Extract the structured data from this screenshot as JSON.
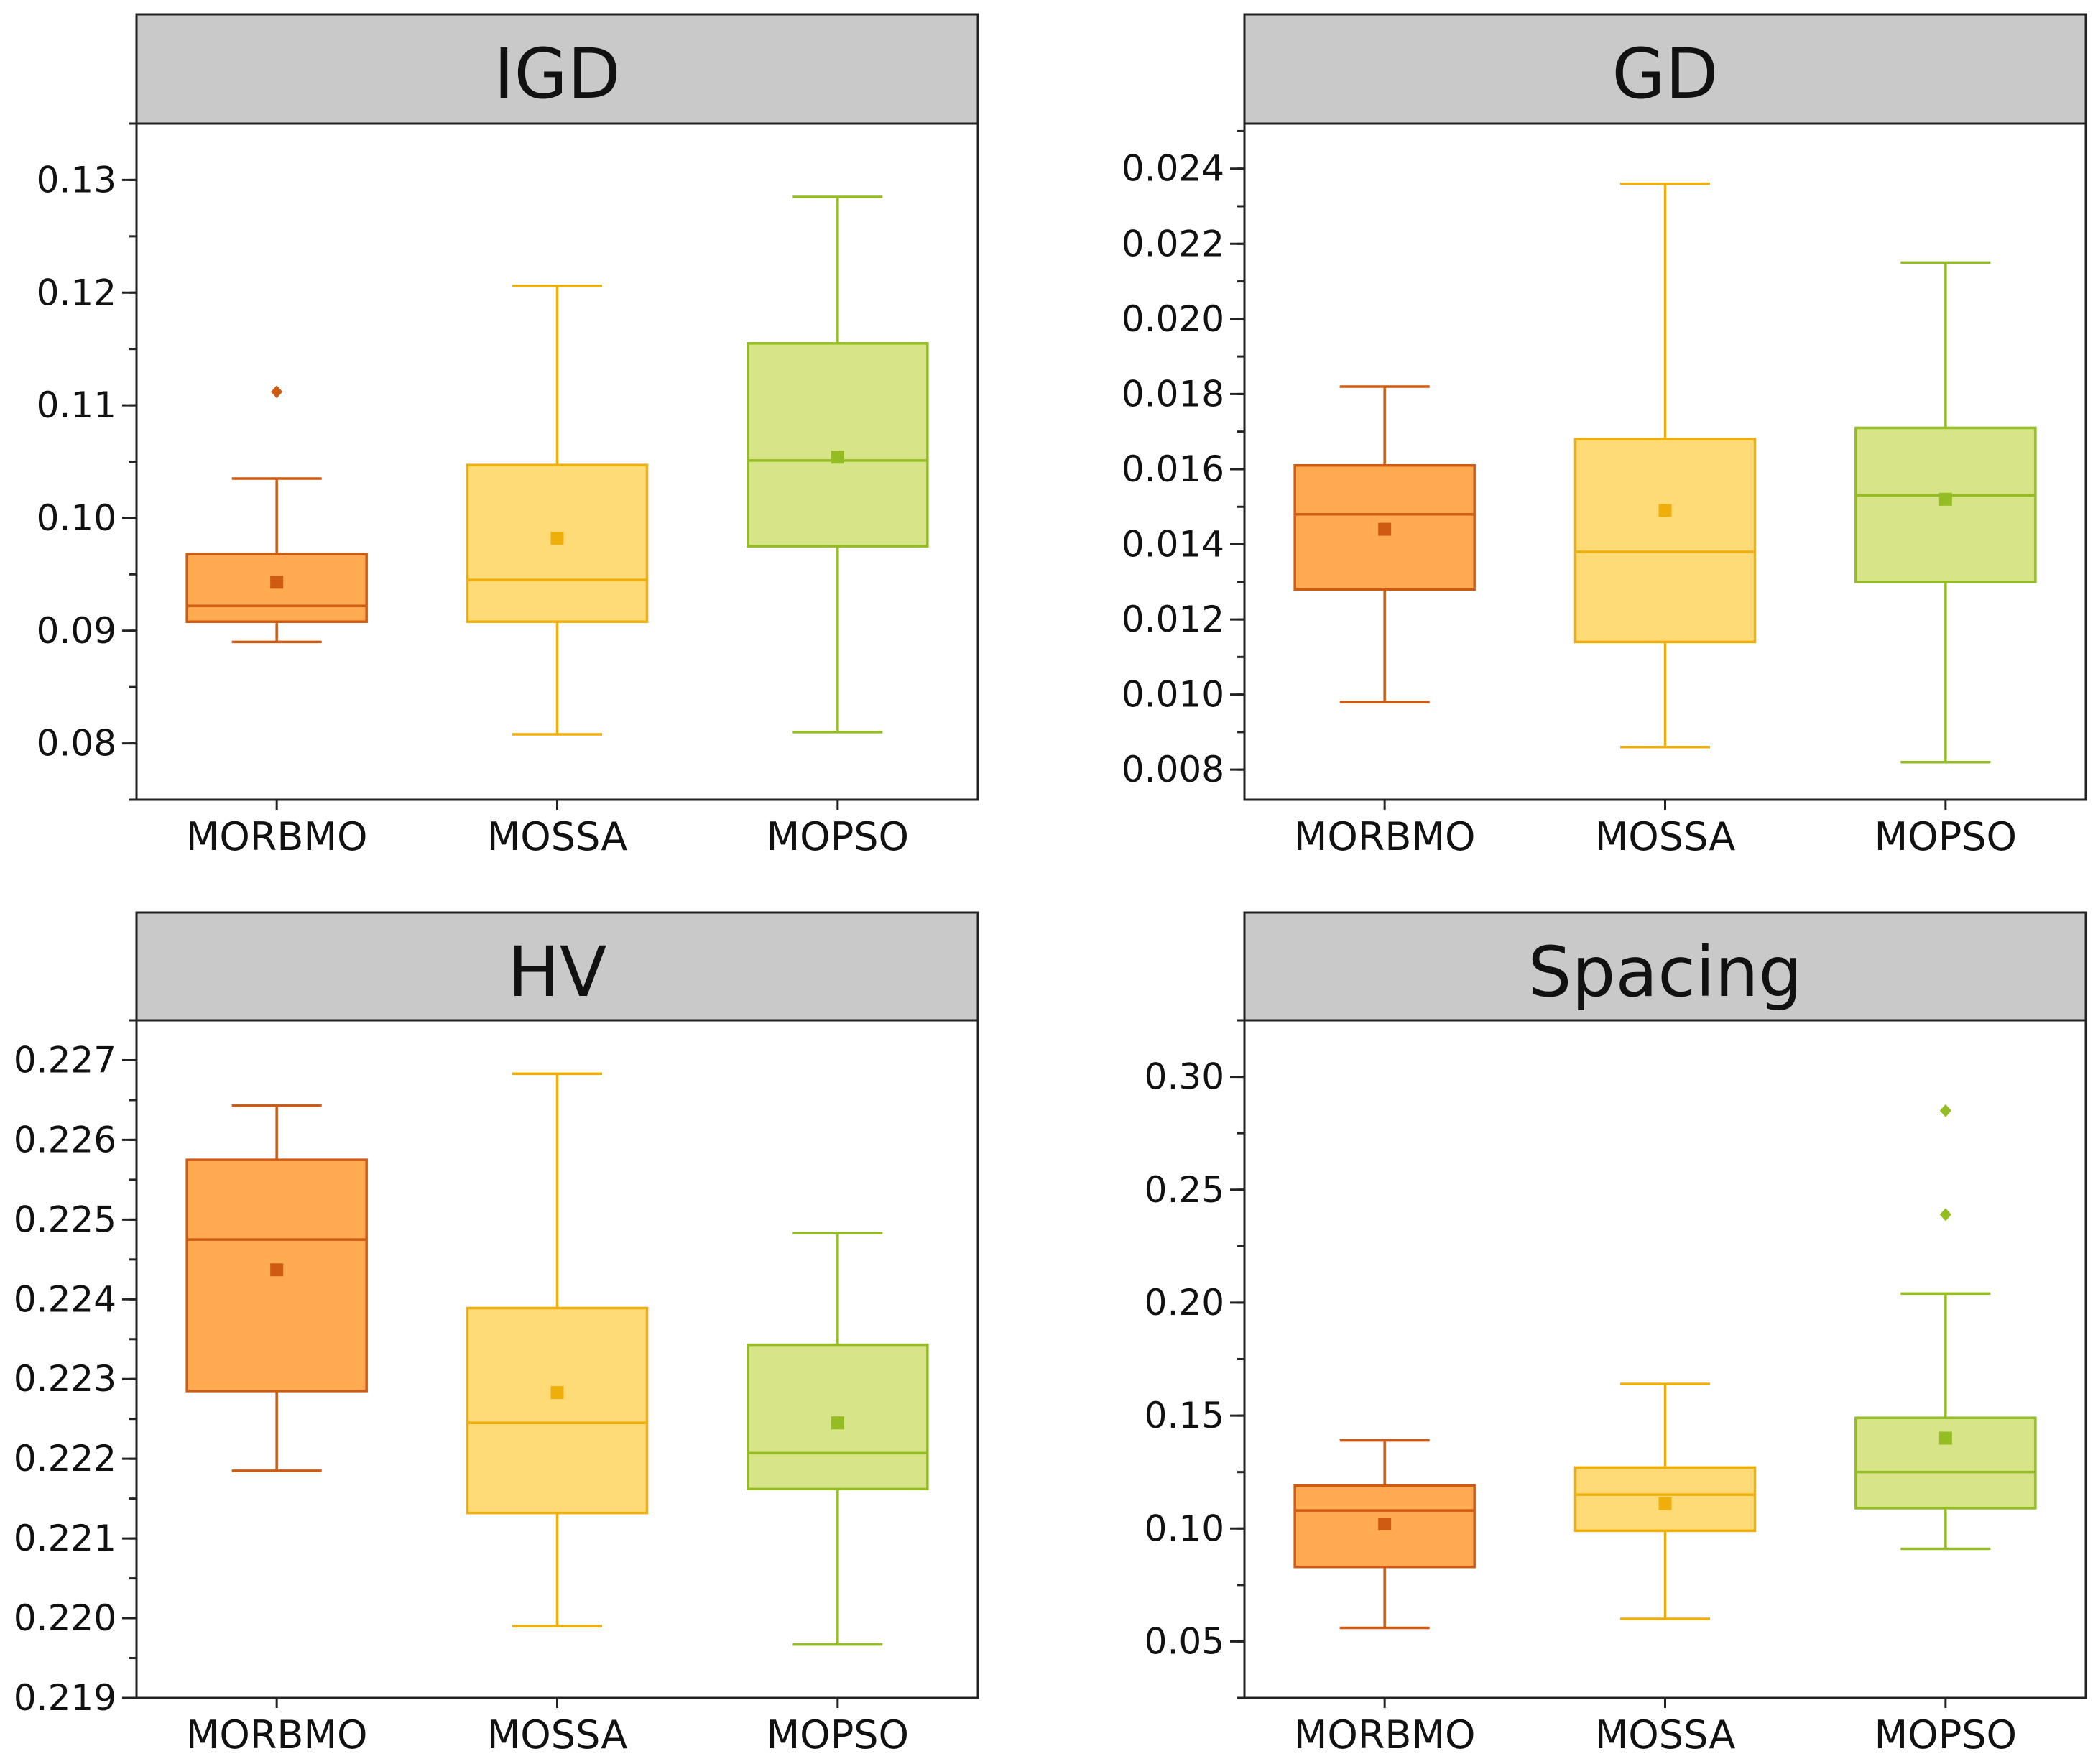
{
  "colors": {
    "header_fill": "#c9c9c9",
    "frame": "#222222",
    "series": [
      {
        "fill": "#ffab52",
        "stroke": "#cf5a12"
      },
      {
        "fill": "#ffdb78",
        "stroke": "#efae0a"
      },
      {
        "fill": "#d7e487",
        "stroke": "#93bd22"
      }
    ]
  },
  "chart_data": [
    {
      "type": "box",
      "title": "IGD",
      "categories": [
        "MORBMO",
        "MOSSA",
        "MOPSO"
      ],
      "ylim": [
        0.075,
        0.135
      ],
      "yticks": [
        0.08,
        0.09,
        0.1,
        0.11,
        0.12,
        0.13
      ],
      "ytick_labels": [
        "0.08",
        "0.09",
        "0.10",
        "0.11",
        "0.12",
        "0.13"
      ],
      "minor_step": 0.005,
      "boxes": [
        {
          "whisker_low": 0.089,
          "q1": 0.0908,
          "median": 0.0922,
          "q3": 0.0968,
          "whisker_high": 0.1035,
          "mean": 0.0943,
          "outliers": [
            0.1112
          ]
        },
        {
          "whisker_low": 0.0808,
          "q1": 0.0908,
          "median": 0.0945,
          "q3": 0.1047,
          "whisker_high": 0.1206,
          "mean": 0.0982,
          "outliers": []
        },
        {
          "whisker_low": 0.081,
          "q1": 0.0975,
          "median": 0.1051,
          "q3": 0.1155,
          "whisker_high": 0.1285,
          "mean": 0.1054,
          "outliers": []
        }
      ]
    },
    {
      "type": "box",
      "title": "GD",
      "categories": [
        "MORBMO",
        "MOSSA",
        "MOPSO"
      ],
      "ylim": [
        0.0072,
        0.0252
      ],
      "yticks": [
        0.008,
        0.01,
        0.012,
        0.014,
        0.016,
        0.018,
        0.02,
        0.022,
        0.024
      ],
      "ytick_labels": [
        "0.008",
        "0.010",
        "0.012",
        "0.014",
        "0.016",
        "0.018",
        "0.020",
        "0.022",
        "0.024"
      ],
      "minor_step": 0.001,
      "boxes": [
        {
          "whisker_low": 0.0098,
          "q1": 0.0128,
          "median": 0.0148,
          "q3": 0.0161,
          "whisker_high": 0.0182,
          "mean": 0.0144,
          "outliers": []
        },
        {
          "whisker_low": 0.0086,
          "q1": 0.0114,
          "median": 0.0138,
          "q3": 0.0168,
          "whisker_high": 0.0236,
          "mean": 0.0149,
          "outliers": []
        },
        {
          "whisker_low": 0.0082,
          "q1": 0.013,
          "median": 0.0153,
          "q3": 0.0171,
          "whisker_high": 0.0215,
          "mean": 0.0152,
          "outliers": []
        }
      ]
    },
    {
      "type": "box",
      "title": "HV",
      "categories": [
        "MORBMO",
        "MOSSA",
        "MOPSO"
      ],
      "ylim": [
        0.219,
        0.2275
      ],
      "yticks": [
        0.219,
        0.22,
        0.221,
        0.222,
        0.223,
        0.224,
        0.225,
        0.226,
        0.227
      ],
      "ytick_labels": [
        "0.219",
        "0.220",
        "0.221",
        "0.222",
        "0.223",
        "0.224",
        "0.225",
        "0.226",
        "0.227"
      ],
      "minor_step": 0.0005,
      "boxes": [
        {
          "whisker_low": 0.22185,
          "q1": 0.22285,
          "median": 0.22475,
          "q3": 0.22575,
          "whisker_high": 0.22643,
          "mean": 0.22437,
          "outliers": []
        },
        {
          "whisker_low": 0.2199,
          "q1": 0.22132,
          "median": 0.22245,
          "q3": 0.22389,
          "whisker_high": 0.22683,
          "mean": 0.22283,
          "outliers": []
        },
        {
          "whisker_low": 0.21967,
          "q1": 0.22162,
          "median": 0.22207,
          "q3": 0.22343,
          "whisker_high": 0.22483,
          "mean": 0.22245,
          "outliers": []
        }
      ]
    },
    {
      "type": "box",
      "title": "Spacing",
      "categories": [
        "MORBMO",
        "MOSSA",
        "MOPSO"
      ],
      "ylim": [
        0.025,
        0.325
      ],
      "yticks": [
        0.05,
        0.1,
        0.15,
        0.2,
        0.25,
        0.3
      ],
      "ytick_labels": [
        "0.05",
        "0.10",
        "0.15",
        "0.20",
        "0.25",
        "0.30"
      ],
      "minor_step": 0.025,
      "boxes": [
        {
          "whisker_low": 0.056,
          "q1": 0.083,
          "median": 0.108,
          "q3": 0.119,
          "whisker_high": 0.139,
          "mean": 0.102,
          "outliers": []
        },
        {
          "whisker_low": 0.06,
          "q1": 0.099,
          "median": 0.115,
          "q3": 0.127,
          "whisker_high": 0.164,
          "mean": 0.111,
          "outliers": []
        },
        {
          "whisker_low": 0.091,
          "q1": 0.109,
          "median": 0.125,
          "q3": 0.149,
          "whisker_high": 0.204,
          "mean": 0.14,
          "outliers": [
            0.239,
            0.285
          ]
        }
      ]
    }
  ]
}
